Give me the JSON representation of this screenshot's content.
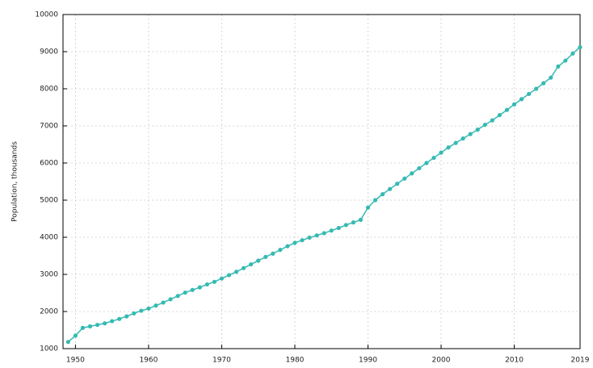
{
  "chart_data": {
    "type": "line",
    "y_label": "Population, thousands",
    "x": [
      1949,
      1950,
      1951,
      1952,
      1953,
      1954,
      1955,
      1956,
      1957,
      1958,
      1959,
      1960,
      1961,
      1962,
      1963,
      1964,
      1965,
      1966,
      1967,
      1968,
      1969,
      1970,
      1971,
      1972,
      1973,
      1974,
      1975,
      1976,
      1977,
      1978,
      1979,
      1980,
      1981,
      1982,
      1983,
      1984,
      1985,
      1986,
      1987,
      1988,
      1989,
      1990,
      1991,
      1992,
      1993,
      1994,
      1995,
      1996,
      1997,
      1998,
      1999,
      2000,
      2001,
      2002,
      2003,
      2004,
      2005,
      2006,
      2007,
      2008,
      2009,
      2010,
      2011,
      2012,
      2013,
      2014,
      2015,
      2016,
      2017,
      2018,
      2019
    ],
    "series": [
      {
        "color": "#35bab2",
        "values": [
          1180,
          1350,
          1560,
          1600,
          1640,
          1680,
          1740,
          1800,
          1870,
          1950,
          2020,
          2080,
          2160,
          2240,
          2330,
          2420,
          2510,
          2580,
          2650,
          2730,
          2800,
          2890,
          2980,
          3070,
          3170,
          3270,
          3370,
          3470,
          3560,
          3660,
          3760,
          3850,
          3920,
          3990,
          4050,
          4110,
          4180,
          4250,
          4330,
          4400,
          4470,
          4800,
          5000,
          5160,
          5300,
          5440,
          5580,
          5720,
          5860,
          6000,
          6140,
          6280,
          6420,
          6540,
          6660,
          6780,
          6900,
          7030,
          7150,
          7290,
          7430,
          7580,
          7720,
          7860,
          8000,
          8150,
          8300,
          8600,
          8760,
          8950,
          9120
        ]
      }
    ],
    "xlim": [
      1948.3,
      2019
    ],
    "xticks": [
      1950,
      1960,
      1970,
      1980,
      1990,
      2000,
      2010,
      2019
    ],
    "ylim": [
      1000,
      10000
    ],
    "yticks": [
      1000,
      2000,
      3000,
      4000,
      5000,
      6000,
      7000,
      8000,
      9000,
      10000
    ],
    "grid": true
  }
}
